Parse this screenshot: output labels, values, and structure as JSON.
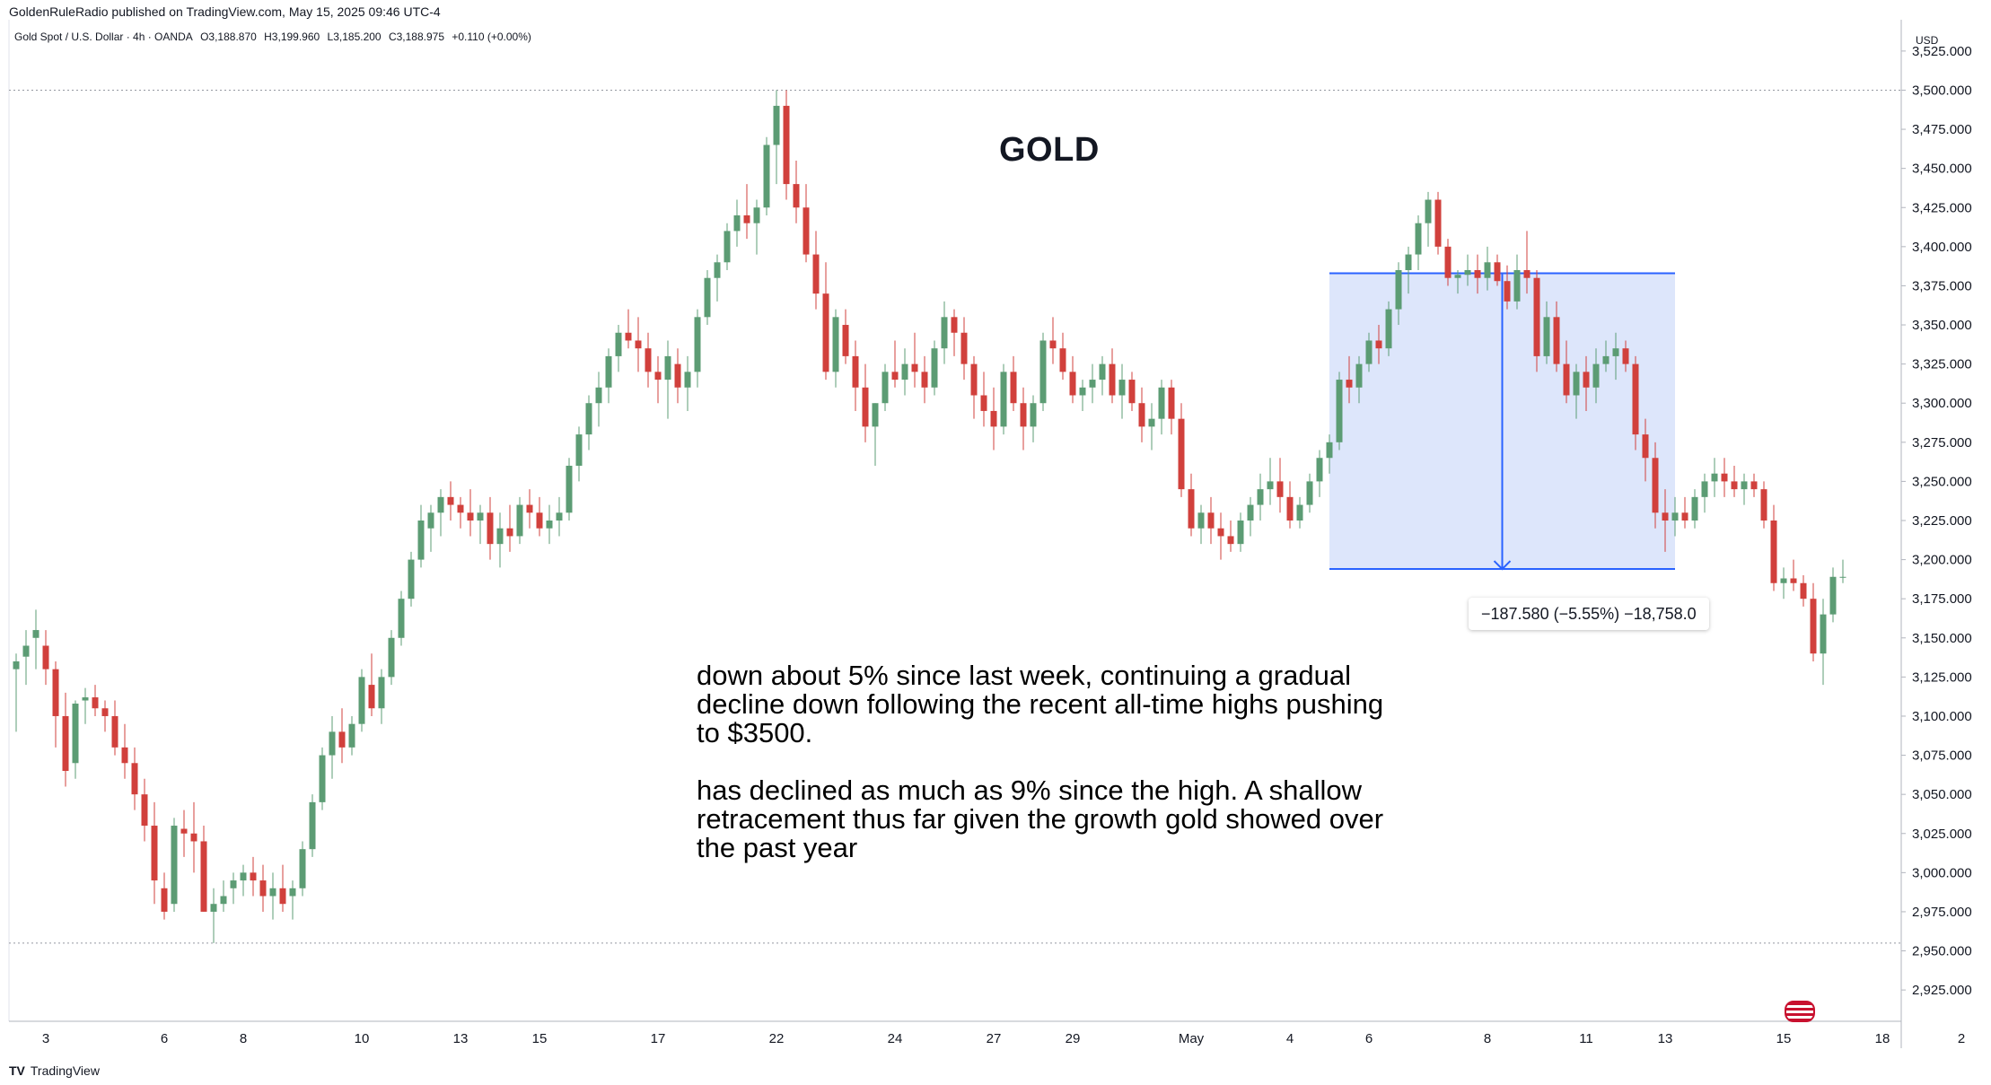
{
  "header": {
    "published_by": "GoldenRuleRadio published on TradingView.com, May 15, 2025 09:46 UTC-4",
    "symbol_line": {
      "symbol": "Gold Spot / U.S. Dollar · 4h · OANDA",
      "open": "O3,188.870",
      "high": "H3,199.960",
      "low": "L3,185.200",
      "close": "C3,188.975",
      "change": "+0.110 (+0.00%)"
    },
    "currency": "USD"
  },
  "footer": {
    "brand": "TradingView",
    "logo_glyph": "TV"
  },
  "annotation": {
    "title": "GOLD",
    "paragraph1": "down about 5% since last week, continuing a gradual\ndecline down following the recent all-time highs pushing\nto $3500.",
    "paragraph2": "has declined as much as 9% since the high.  A shallow\nretracement thus far given the growth gold showed over\nthe past year"
  },
  "measure": {
    "label": "−187.580 (−5.55%) −18,758.0",
    "from_price": 3383,
    "to_price": 3194,
    "start_bar": 133,
    "end_bar": 168
  },
  "colors": {
    "up": "#22ab94",
    "up_fill": "#5c9c74",
    "down": "#d1403c",
    "measure_fill": "#dde6fb",
    "measure_line": "#2962ff"
  },
  "chart_data": {
    "type": "candlestick",
    "interval": "4h",
    "ylim": [
      2905,
      3545
    ],
    "y_ticks": [
      2925,
      2950,
      2975,
      3000,
      3025,
      3050,
      3075,
      3100,
      3125,
      3150,
      3175,
      3200,
      3225,
      3250,
      3275,
      3300,
      3325,
      3350,
      3375,
      3400,
      3425,
      3450,
      3475,
      3500,
      3525
    ],
    "y_tick_labels": [
      "2,925.000",
      "2,950.000",
      "2,975.000",
      "3,000.000",
      "3,025.000",
      "3,050.000",
      "3,075.000",
      "3,100.000",
      "3,125.000",
      "3,150.000",
      "3,175.000",
      "3,200.000",
      "3,225.000",
      "3,250.000",
      "3,275.000",
      "3,300.000",
      "3,325.000",
      "3,350.000",
      "3,375.000",
      "3,400.000",
      "3,425.000",
      "3,450.000",
      "3,475.000",
      "3,500.000",
      "3,525.000"
    ],
    "x_labels": [
      {
        "bar": 3,
        "label": "3"
      },
      {
        "bar": 15,
        "label": "6"
      },
      {
        "bar": 23,
        "label": "8"
      },
      {
        "bar": 35,
        "label": "10"
      },
      {
        "bar": 45,
        "label": "13"
      },
      {
        "bar": 53,
        "label": "15"
      },
      {
        "bar": 65,
        "label": "17"
      },
      {
        "bar": 77,
        "label": "22"
      },
      {
        "bar": 89,
        "label": "24"
      },
      {
        "bar": 99,
        "label": "27"
      },
      {
        "bar": 107,
        "label": "29"
      },
      {
        "bar": 119,
        "label": "May"
      },
      {
        "bar": 129,
        "label": "4"
      },
      {
        "bar": 137,
        "label": "6"
      },
      {
        "bar": 149,
        "label": "8"
      },
      {
        "bar": 159,
        "label": "11"
      },
      {
        "bar": 167,
        "label": "13"
      },
      {
        "bar": 179,
        "label": "15"
      },
      {
        "bar": 189,
        "label": "18"
      },
      {
        "bar": 197,
        "label": "2"
      }
    ],
    "reference_levels": [
      3500,
      2955
    ],
    "ohlc": [
      [
        3130,
        3140,
        3090,
        3135
      ],
      [
        3138,
        3155,
        3120,
        3145
      ],
      [
        3150,
        3168,
        3130,
        3155
      ],
      [
        3145,
        3155,
        3120,
        3130
      ],
      [
        3130,
        3135,
        3080,
        3100
      ],
      [
        3100,
        3115,
        3055,
        3065
      ],
      [
        3070,
        3110,
        3060,
        3108
      ],
      [
        3110,
        3118,
        3095,
        3112
      ],
      [
        3112,
        3120,
        3100,
        3105
      ],
      [
        3105,
        3110,
        3090,
        3100
      ],
      [
        3100,
        3110,
        3075,
        3080
      ],
      [
        3080,
        3095,
        3060,
        3070
      ],
      [
        3070,
        3080,
        3040,
        3050
      ],
      [
        3050,
        3060,
        3020,
        3030
      ],
      [
        3030,
        3045,
        2980,
        2995
      ],
      [
        2990,
        3000,
        2970,
        2975
      ],
      [
        2980,
        3035,
        2975,
        3030
      ],
      [
        3028,
        3040,
        3010,
        3025
      ],
      [
        3025,
        3045,
        3000,
        3020
      ],
      [
        3020,
        3030,
        2975,
        2975
      ],
      [
        2975,
        2990,
        2955,
        2980
      ],
      [
        2980,
        2995,
        2975,
        2985
      ],
      [
        2990,
        3000,
        2980,
        2995
      ],
      [
        2995,
        3005,
        2985,
        3000
      ],
      [
        3000,
        3010,
        2985,
        2995
      ],
      [
        2995,
        3005,
        2975,
        2985
      ],
      [
        2985,
        3000,
        2970,
        2990
      ],
      [
        2990,
        3005,
        2975,
        2980
      ],
      [
        2985,
        2995,
        2970,
        2990
      ],
      [
        2990,
        3020,
        2985,
        3015
      ],
      [
        3015,
        3050,
        3010,
        3045
      ],
      [
        3045,
        3080,
        3040,
        3075
      ],
      [
        3075,
        3100,
        3060,
        3090
      ],
      [
        3090,
        3105,
        3070,
        3080
      ],
      [
        3080,
        3100,
        3075,
        3095
      ],
      [
        3095,
        3130,
        3090,
        3125
      ],
      [
        3120,
        3140,
        3100,
        3105
      ],
      [
        3105,
        3130,
        3095,
        3125
      ],
      [
        3125,
        3155,
        3120,
        3150
      ],
      [
        3150,
        3180,
        3145,
        3175
      ],
      [
        3175,
        3205,
        3170,
        3200
      ],
      [
        3200,
        3235,
        3195,
        3225
      ],
      [
        3220,
        3235,
        3205,
        3230
      ],
      [
        3230,
        3245,
        3215,
        3240
      ],
      [
        3240,
        3250,
        3225,
        3235
      ],
      [
        3235,
        3240,
        3220,
        3230
      ],
      [
        3230,
        3245,
        3215,
        3225
      ],
      [
        3225,
        3235,
        3210,
        3230
      ],
      [
        3230,
        3240,
        3200,
        3210
      ],
      [
        3210,
        3230,
        3195,
        3220
      ],
      [
        3220,
        3235,
        3205,
        3215
      ],
      [
        3215,
        3240,
        3210,
        3235
      ],
      [
        3235,
        3245,
        3220,
        3230
      ],
      [
        3230,
        3240,
        3215,
        3220
      ],
      [
        3220,
        3235,
        3210,
        3225
      ],
      [
        3225,
        3240,
        3215,
        3230
      ],
      [
        3230,
        3265,
        3225,
        3260
      ],
      [
        3260,
        3285,
        3250,
        3280
      ],
      [
        3280,
        3305,
        3270,
        3300
      ],
      [
        3300,
        3320,
        3285,
        3310
      ],
      [
        3310,
        3335,
        3300,
        3330
      ],
      [
        3330,
        3350,
        3320,
        3345
      ],
      [
        3345,
        3360,
        3335,
        3340
      ],
      [
        3340,
        3355,
        3320,
        3335
      ],
      [
        3335,
        3345,
        3310,
        3320
      ],
      [
        3320,
        3330,
        3300,
        3315
      ],
      [
        3315,
        3340,
        3290,
        3330
      ],
      [
        3325,
        3335,
        3300,
        3310
      ],
      [
        3310,
        3330,
        3295,
        3320
      ],
      [
        3320,
        3360,
        3310,
        3355
      ],
      [
        3355,
        3385,
        3350,
        3380
      ],
      [
        3380,
        3395,
        3365,
        3390
      ],
      [
        3390,
        3415,
        3385,
        3410
      ],
      [
        3410,
        3430,
        3400,
        3420
      ],
      [
        3420,
        3440,
        3405,
        3415
      ],
      [
        3415,
        3430,
        3395,
        3425
      ],
      [
        3425,
        3470,
        3420,
        3465
      ],
      [
        3465,
        3500,
        3440,
        3490
      ],
      [
        3490,
        3500,
        3430,
        3440
      ],
      [
        3440,
        3455,
        3415,
        3425
      ],
      [
        3425,
        3440,
        3390,
        3395
      ],
      [
        3395,
        3410,
        3360,
        3370
      ],
      [
        3370,
        3390,
        3315,
        3320
      ],
      [
        3320,
        3360,
        3310,
        3355
      ],
      [
        3350,
        3360,
        3325,
        3330
      ],
      [
        3330,
        3340,
        3295,
        3310
      ],
      [
        3310,
        3325,
        3275,
        3285
      ],
      [
        3285,
        3300,
        3260,
        3300
      ],
      [
        3300,
        3325,
        3295,
        3320
      ],
      [
        3320,
        3340,
        3310,
        3315
      ],
      [
        3315,
        3335,
        3305,
        3325
      ],
      [
        3325,
        3345,
        3310,
        3320
      ],
      [
        3320,
        3330,
        3300,
        3310
      ],
      [
        3310,
        3340,
        3305,
        3335
      ],
      [
        3335,
        3365,
        3325,
        3355
      ],
      [
        3355,
        3360,
        3330,
        3345
      ],
      [
        3345,
        3355,
        3315,
        3325
      ],
      [
        3325,
        3330,
        3290,
        3305
      ],
      [
        3305,
        3320,
        3285,
        3295
      ],
      [
        3295,
        3310,
        3270,
        3285
      ],
      [
        3285,
        3325,
        3280,
        3320
      ],
      [
        3320,
        3330,
        3295,
        3300
      ],
      [
        3300,
        3310,
        3270,
        3285
      ],
      [
        3285,
        3305,
        3275,
        3300
      ],
      [
        3300,
        3345,
        3295,
        3340
      ],
      [
        3340,
        3355,
        3325,
        3335
      ],
      [
        3335,
        3345,
        3315,
        3320
      ],
      [
        3320,
        3330,
        3300,
        3305
      ],
      [
        3305,
        3315,
        3295,
        3310
      ],
      [
        3310,
        3325,
        3300,
        3315
      ],
      [
        3315,
        3330,
        3305,
        3325
      ],
      [
        3325,
        3335,
        3300,
        3305
      ],
      [
        3305,
        3325,
        3290,
        3315
      ],
      [
        3315,
        3320,
        3295,
        3300
      ],
      [
        3300,
        3310,
        3275,
        3285
      ],
      [
        3285,
        3300,
        3270,
        3290
      ],
      [
        3290,
        3315,
        3280,
        3310
      ],
      [
        3310,
        3315,
        3280,
        3290
      ],
      [
        3290,
        3300,
        3240,
        3245
      ],
      [
        3245,
        3255,
        3215,
        3220
      ],
      [
        3220,
        3235,
        3210,
        3230
      ],
      [
        3230,
        3240,
        3210,
        3220
      ],
      [
        3220,
        3230,
        3200,
        3215
      ],
      [
        3215,
        3225,
        3205,
        3210
      ],
      [
        3210,
        3230,
        3205,
        3225
      ],
      [
        3225,
        3240,
        3215,
        3235
      ],
      [
        3235,
        3255,
        3225,
        3245
      ],
      [
        3245,
        3265,
        3235,
        3250
      ],
      [
        3250,
        3265,
        3230,
        3240
      ],
      [
        3240,
        3250,
        3220,
        3225
      ],
      [
        3225,
        3240,
        3220,
        3235
      ],
      [
        3235,
        3255,
        3230,
        3250
      ],
      [
        3250,
        3270,
        3240,
        3265
      ],
      [
        3265,
        3280,
        3255,
        3275
      ],
      [
        3275,
        3320,
        3270,
        3315
      ],
      [
        3315,
        3330,
        3300,
        3310
      ],
      [
        3310,
        3330,
        3300,
        3325
      ],
      [
        3325,
        3345,
        3320,
        3340
      ],
      [
        3340,
        3350,
        3325,
        3335
      ],
      [
        3335,
        3365,
        3330,
        3360
      ],
      [
        3360,
        3390,
        3350,
        3385
      ],
      [
        3385,
        3400,
        3370,
        3395
      ],
      [
        3395,
        3420,
        3385,
        3415
      ],
      [
        3415,
        3435,
        3400,
        3430
      ],
      [
        3430,
        3435,
        3395,
        3400
      ],
      [
        3400,
        3405,
        3375,
        3380
      ],
      [
        3380,
        3385,
        3370,
        3382
      ],
      [
        3382,
        3395,
        3375,
        3385
      ],
      [
        3385,
        3395,
        3370,
        3380
      ],
      [
        3380,
        3400,
        3372,
        3390
      ],
      [
        3390,
        3395,
        3375,
        3378
      ],
      [
        3378,
        3388,
        3360,
        3365
      ],
      [
        3365,
        3395,
        3360,
        3385
      ],
      [
        3385,
        3410,
        3370,
        3380
      ],
      [
        3380,
        3385,
        3320,
        3330
      ],
      [
        3330,
        3365,
        3325,
        3355
      ],
      [
        3355,
        3365,
        3320,
        3325
      ],
      [
        3325,
        3340,
        3300,
        3305
      ],
      [
        3305,
        3325,
        3290,
        3320
      ],
      [
        3320,
        3330,
        3295,
        3310
      ],
      [
        3310,
        3335,
        3300,
        3325
      ],
      [
        3325,
        3340,
        3320,
        3330
      ],
      [
        3330,
        3345,
        3315,
        3335
      ],
      [
        3335,
        3340,
        3320,
        3325
      ],
      [
        3325,
        3330,
        3270,
        3280
      ],
      [
        3280,
        3290,
        3250,
        3265
      ],
      [
        3265,
        3275,
        3220,
        3230
      ],
      [
        3230,
        3245,
        3205,
        3225
      ],
      [
        3225,
        3240,
        3215,
        3230
      ],
      [
        3230,
        3240,
        3220,
        3225
      ],
      [
        3225,
        3245,
        3220,
        3240
      ],
      [
        3240,
        3255,
        3230,
        3250
      ],
      [
        3250,
        3265,
        3240,
        3255
      ],
      [
        3255,
        3265,
        3240,
        3250
      ],
      [
        3250,
        3260,
        3240,
        3245
      ],
      [
        3245,
        3255,
        3235,
        3250
      ],
      [
        3250,
        3255,
        3240,
        3245
      ],
      [
        3245,
        3250,
        3220,
        3225
      ],
      [
        3225,
        3235,
        3180,
        3185
      ],
      [
        3185,
        3195,
        3175,
        3188
      ],
      [
        3188,
        3200,
        3180,
        3185
      ],
      [
        3185,
        3190,
        3170,
        3175
      ],
      [
        3175,
        3185,
        3135,
        3140
      ],
      [
        3140,
        3175,
        3120,
        3165
      ],
      [
        3165,
        3195,
        3160,
        3189
      ],
      [
        3189,
        3200,
        3185,
        3189
      ]
    ]
  }
}
